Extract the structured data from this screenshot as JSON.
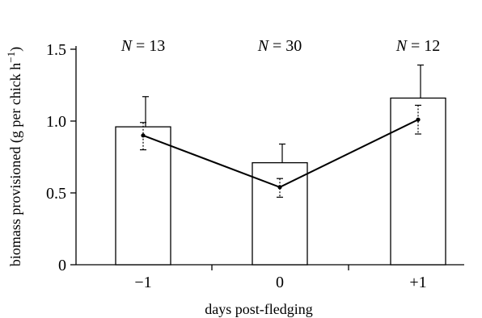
{
  "chart_data": {
    "type": "bar",
    "title": "",
    "xlabel": "days post-fledging",
    "ylabel": "biomass provisioned (g per chick h",
    "ylabel_superscript": "−1",
    "ylabel_close": ")",
    "categories": [
      "−1",
      "0",
      "+1"
    ],
    "ylim": [
      0,
      1.5
    ],
    "yticks": [
      0,
      0.5,
      1.0,
      1.5
    ],
    "ytick_labels": [
      "0",
      "0.5",
      "1.0",
      "1.5"
    ],
    "bars": {
      "values": [
        0.96,
        0.71,
        1.16
      ],
      "error_upper": [
        1.17,
        0.84,
        1.39
      ]
    },
    "line": {
      "values": [
        0.9,
        0.54,
        1.01
      ],
      "error_lower": [
        0.8,
        0.47,
        0.91
      ],
      "error_upper": [
        0.99,
        0.6,
        1.11
      ]
    },
    "n_labels": [
      {
        "var": "N",
        "text": " = 13"
      },
      {
        "var": "N",
        "text": " = 30"
      },
      {
        "var": "N",
        "text": " = 12"
      }
    ],
    "grid": false,
    "colors": {
      "bar_fill": "#ffffff",
      "stroke": "#000000"
    }
  }
}
